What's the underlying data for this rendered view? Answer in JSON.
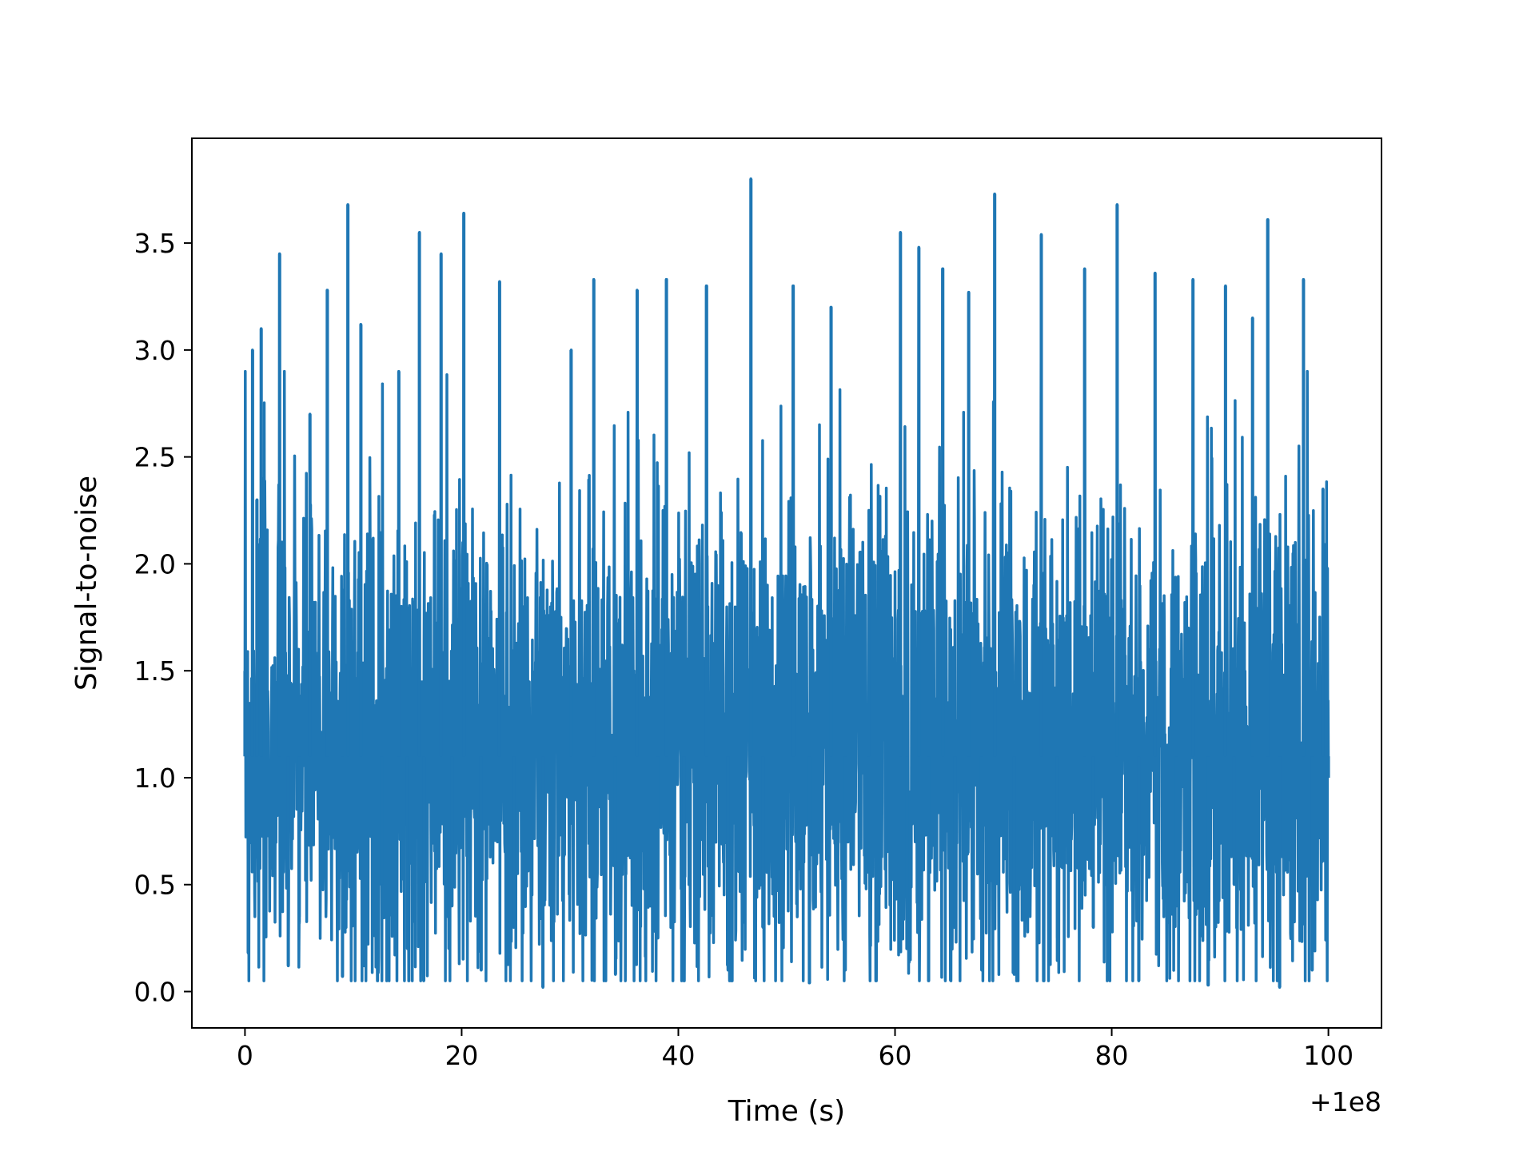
{
  "chart_data": {
    "type": "line",
    "title": "",
    "xlabel": "Time (s)",
    "ylabel": "Signal-to-noise",
    "x_offset_label": "+1e8",
    "xlim": [
      -4.9,
      104.9
    ],
    "ylim": [
      -0.17,
      3.99
    ],
    "xticks": [
      0,
      20,
      40,
      60,
      80,
      100
    ],
    "xtick_labels": [
      "0",
      "20",
      "40",
      "60",
      "80",
      "100"
    ],
    "yticks": [
      0.0,
      0.5,
      1.0,
      1.5,
      2.0,
      2.5,
      3.0,
      3.5
    ],
    "ytick_labels": [
      "0.0",
      "0.5",
      "1.0",
      "1.5",
      "2.0",
      "2.5",
      "3.0",
      "3.5"
    ],
    "grid": false,
    "legend": "none",
    "colors": {
      "line": "#1f77b4",
      "axes": "#000000",
      "background": "#ffffff"
    },
    "series": [
      {
        "x": [
          0,
          0.3,
          0.7,
          1.1,
          1.5,
          3.2,
          4.0,
          5.0,
          6.0,
          7.6,
          9.0,
          9.5,
          10.7,
          12.6,
          14.2,
          15.0,
          16.1,
          16.5,
          18.1,
          19.1,
          20.2,
          21.8,
          23.5,
          24.8,
          27.5,
          30.1,
          32.2,
          34.2,
          36.2,
          38.1,
          38.9,
          40.5,
          42.6,
          44.6,
          46.7,
          47.8,
          50.6,
          52.1,
          54.1,
          55.4,
          57.6,
          60.5,
          61.1,
          62.2,
          63.1,
          64.4,
          65.5,
          66.8,
          68.0,
          69.2,
          71.0,
          73.5,
          75.0,
          77.5,
          78.3,
          80.5,
          82.5,
          84.0,
          86.0,
          87.5,
          88.9,
          90.5,
          91.3,
          93.0,
          94.4,
          95.5,
          97.7,
          98.5,
          99.5,
          100
        ],
        "y": [
          1.5,
          0.18,
          3.0,
          2.3,
          3.1,
          3.45,
          0.12,
          0.35,
          2.7,
          3.28,
          0.07,
          3.68,
          3.12,
          0.5,
          2.9,
          0.2,
          3.55,
          0.05,
          3.45,
          0.4,
          3.64,
          0.1,
          3.32,
          0.3,
          0.02,
          3.0,
          3.33,
          0.08,
          3.28,
          0.25,
          3.33,
          0.05,
          3.3,
          0.1,
          3.8,
          0.3,
          3.3,
          0.04,
          3.2,
          0.1,
          2.25,
          3.55,
          0.2,
          3.48,
          0.05,
          3.38,
          0.3,
          3.27,
          0.1,
          3.73,
          0.08,
          3.54,
          0.25,
          3.38,
          0.3,
          3.68,
          0.05,
          3.36,
          0.4,
          3.33,
          0.03,
          3.3,
          0.5,
          3.15,
          3.61,
          0.02,
          3.33,
          0.1,
          2.35,
          1.0
        ]
      }
    ]
  }
}
